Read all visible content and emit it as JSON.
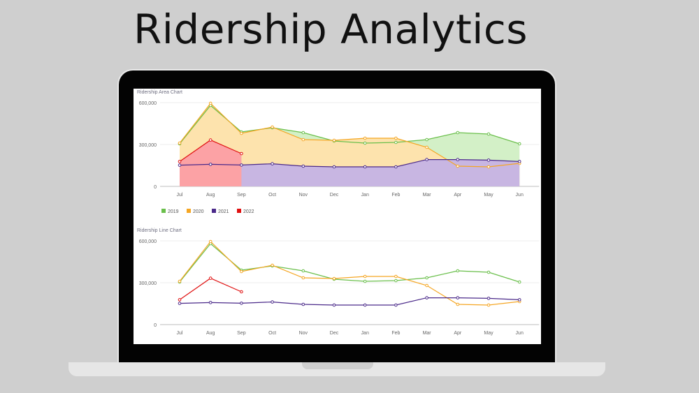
{
  "title": "Ridership Analytics",
  "colors": {
    "2019": "#6abf4b",
    "2020": "#f5a623",
    "2021": "#4b2a8a",
    "2022": "#e01010"
  },
  "chart_data": [
    {
      "type": "area",
      "title": "Ridership Area Chart",
      "categories": [
        "Jul",
        "Aug",
        "Sep",
        "Oct",
        "Nov",
        "Dec",
        "Jan",
        "Feb",
        "Mar",
        "Apr",
        "May",
        "Jun"
      ],
      "yticks": [
        "0",
        "300,000",
        "600,000"
      ],
      "ylim": [
        0,
        600000
      ],
      "grid": true,
      "legend": "bottom-left",
      "series": [
        {
          "name": "2019",
          "values": [
            305000,
            580000,
            390000,
            420000,
            385000,
            325000,
            310000,
            315000,
            335000,
            385000,
            375000,
            305000
          ]
        },
        {
          "name": "2020",
          "values": [
            310000,
            595000,
            380000,
            425000,
            335000,
            330000,
            345000,
            345000,
            280000,
            145000,
            140000,
            165000
          ]
        },
        {
          "name": "2021",
          "values": [
            152000,
            158000,
            153000,
            162000,
            145000,
            140000,
            140000,
            140000,
            192000,
            192000,
            188000,
            178000
          ]
        },
        {
          "name": "2022",
          "values": [
            178000,
            332000,
            235000,
            null,
            null,
            null,
            null,
            null,
            null,
            null,
            null,
            null
          ]
        }
      ]
    },
    {
      "type": "line",
      "title": "Ridership Line Chart",
      "categories": [
        "Jul",
        "Aug",
        "Sep",
        "Oct",
        "Nov",
        "Dec",
        "Jan",
        "Feb",
        "Mar",
        "Apr",
        "May",
        "Jun"
      ],
      "yticks": [
        "0",
        "300,000",
        "600,000"
      ],
      "ylim": [
        0,
        600000
      ],
      "grid": true,
      "series": [
        {
          "name": "2019",
          "values": [
            305000,
            580000,
            390000,
            420000,
            385000,
            325000,
            310000,
            315000,
            335000,
            385000,
            375000,
            305000
          ]
        },
        {
          "name": "2020",
          "values": [
            310000,
            595000,
            380000,
            425000,
            335000,
            330000,
            345000,
            345000,
            280000,
            145000,
            140000,
            165000
          ]
        },
        {
          "name": "2021",
          "values": [
            152000,
            158000,
            153000,
            162000,
            145000,
            140000,
            140000,
            140000,
            192000,
            192000,
            188000,
            178000
          ]
        },
        {
          "name": "2022",
          "values": [
            178000,
            332000,
            235000,
            null,
            null,
            null,
            null,
            null,
            null,
            null,
            null,
            null
          ]
        }
      ]
    }
  ]
}
